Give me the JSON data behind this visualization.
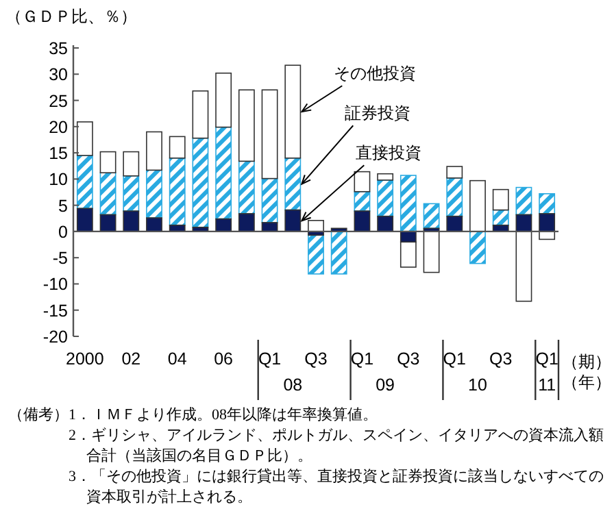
{
  "chart_data": {
    "type": "bar",
    "stacked": true,
    "ylabel": "（ＧＤＰ比、％）",
    "xlabel": "（期）（年）",
    "categories": [
      "2000",
      null,
      "02",
      null,
      "04",
      null,
      "06",
      null,
      "Q1",
      "\n08",
      "Q3",
      null,
      "Q1",
      "\n09",
      "Q3",
      null,
      "Q1",
      "\n10",
      "Q3",
      null,
      "Q1\n11"
    ],
    "series": [
      {
        "name": "直接投資",
        "color": "#0d1b5e",
        "values": [
          4.4,
          3.2,
          3.9,
          2.6,
          1.2,
          0.8,
          2.4,
          3.4,
          1.7,
          4.1,
          -0.7,
          0.6,
          3.9,
          2.9,
          -2.0,
          0.6,
          2.9,
          0,
          1.2,
          3.2,
          3.4
        ]
      },
      {
        "name": "証券投資",
        "color": "#29aae1",
        "values": [
          10.1,
          8.0,
          6.7,
          9.1,
          12.8,
          17.0,
          17.5,
          10.0,
          8.4,
          9.9,
          -7.4,
          -8.1,
          3.7,
          6.9,
          10.7,
          4.7,
          7.3,
          -6.1,
          2.9,
          5.2,
          3.8
        ]
      },
      {
        "name": "その他投資",
        "color": "#ffffff",
        "values": [
          6.4,
          4.0,
          4.6,
          7.3,
          4.1,
          9.0,
          10.3,
          13.6,
          16.9,
          17.7,
          2.1,
          0,
          3.8,
          1.2,
          -4.8,
          -7.8,
          2.2,
          9.7,
          3.9,
          -13.3,
          -1.5
        ]
      }
    ],
    "ylim": [
      -20,
      35
    ],
    "yticks": [
      -20,
      -15,
      -10,
      -5,
      0,
      5,
      10,
      15,
      20,
      25,
      30,
      35
    ],
    "annotations": [
      "（備考）",
      "1．ＩＭＦより作成。08年以降は年率換算値。",
      "2．ギリシャ、アイルランド、ポルトガル、スペイン、イタリアへの資本流入額合計（当該国の名目ＧＤＰ比）。",
      "3．「その他投資」には銀行貸出等、直接投資と証券投資に該当しないすべての資本取引が計上される。"
    ]
  }
}
